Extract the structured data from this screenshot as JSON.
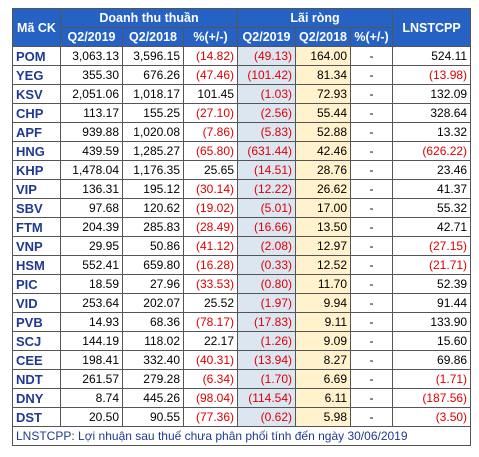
{
  "header": {
    "code": "Mã CK",
    "groups": [
      "Doanh thu thuần",
      "Lãi ròng"
    ],
    "last": "LNSTCPP",
    "sub": [
      "Q2/2019",
      "Q2/2018",
      "%(+/-)",
      "Q2/2019",
      "Q2/2018",
      "%(+/-)"
    ]
  },
  "rows": [
    [
      "POM",
      "3,063.13",
      "3,596.15",
      "(14.82)",
      "(49.13)",
      "164.00",
      "-",
      "524.11"
    ],
    [
      "YEG",
      "355.30",
      "676.26",
      "(47.46)",
      "(101.42)",
      "81.34",
      "-",
      "(13.98)"
    ],
    [
      "KSV",
      "2,051.06",
      "1,018.17",
      "101.45",
      "(1.03)",
      "72.93",
      "-",
      "132.09"
    ],
    [
      "CHP",
      "113.17",
      "155.25",
      "(27.10)",
      "(2.56)",
      "55.44",
      "-",
      "328.64"
    ],
    [
      "APF",
      "939.88",
      "1,020.08",
      "(7.86)",
      "(5.83)",
      "52.88",
      "-",
      "13.32"
    ],
    [
      "HNG",
      "439.59",
      "1,285.27",
      "(65.80)",
      "(631.44)",
      "42.46",
      "-",
      "(626.22)"
    ],
    [
      "KHP",
      "1,478.04",
      "1,176.35",
      "25.65",
      "(14.51)",
      "28.76",
      "-",
      "23.46"
    ],
    [
      "VIP",
      "136.31",
      "195.12",
      "(30.14)",
      "(12.22)",
      "26.62",
      "-",
      "41.37"
    ],
    [
      "SBV",
      "97.68",
      "120.62",
      "(19.02)",
      "(5.01)",
      "17.00",
      "-",
      "55.32"
    ],
    [
      "FTM",
      "204.39",
      "285.83",
      "(28.49)",
      "(16.66)",
      "13.50",
      "-",
      "42.71"
    ],
    [
      "VNP",
      "29.95",
      "50.86",
      "(41.12)",
      "(2.08)",
      "12.97",
      "-",
      "(27.15)"
    ],
    [
      "HSM",
      "552.41",
      "659.80",
      "(16.28)",
      "(0.33)",
      "12.52",
      "-",
      "(21.71)"
    ],
    [
      "PIC",
      "18.59",
      "27.96",
      "(33.53)",
      "(0.80)",
      "11.70",
      "-",
      "52.39"
    ],
    [
      "VID",
      "253.64",
      "202.07",
      "25.52",
      "(1.97)",
      "9.94",
      "-",
      "91.44"
    ],
    [
      "PVB",
      "14.93",
      "68.36",
      "(78.17)",
      "(17.83)",
      "9.11",
      "-",
      "133.90"
    ],
    [
      "SCJ",
      "144.19",
      "118.02",
      "22.17",
      "(1.26)",
      "9.09",
      "-",
      "15.60"
    ],
    [
      "CEE",
      "198.41",
      "332.40",
      "(40.31)",
      "(13.94)",
      "8.27",
      "-",
      "69.86"
    ],
    [
      "NDT",
      "261.57",
      "279.28",
      "(6.34)",
      "(1.70)",
      "6.69",
      "-",
      "(1.71)"
    ],
    [
      "DNY",
      "8.74",
      "445.26",
      "(98.04)",
      "(114.54)",
      "6.11",
      "-",
      "(187.56)"
    ],
    [
      "DST",
      "20.50",
      "90.55",
      "(77.36)",
      "(0.62)",
      "5.98",
      "-",
      "(3.50)"
    ]
  ],
  "footer": "LNSTCPP: Lợi nhuận sau thuế chưa phân phối tính đến ngày 30/06/2019"
}
